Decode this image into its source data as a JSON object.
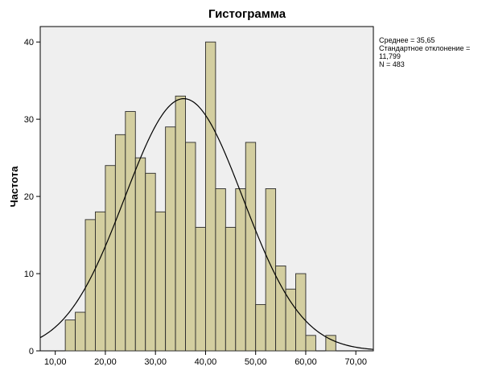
{
  "chart_data": {
    "type": "histogram",
    "title": "Гистограмма",
    "ylabel": "Частота",
    "xlabel": "",
    "xlim": [
      7,
      73.5
    ],
    "ylim": [
      0,
      42
    ],
    "grid": false,
    "x_ticks": [
      10,
      20,
      30,
      40,
      50,
      60,
      70
    ],
    "x_tick_labels": [
      "10,00",
      "20,00",
      "30,00",
      "40,00",
      "50,00",
      "60,00",
      "70,00"
    ],
    "y_ticks": [
      0,
      10,
      20,
      30,
      40
    ],
    "y_tick_labels": [
      "0",
      "10",
      "20",
      "30",
      "40"
    ],
    "bin_width": 2,
    "bins": [
      {
        "x0": 12,
        "x1": 14,
        "count": 4
      },
      {
        "x0": 14,
        "x1": 16,
        "count": 5
      },
      {
        "x0": 16,
        "x1": 18,
        "count": 17
      },
      {
        "x0": 18,
        "x1": 20,
        "count": 18
      },
      {
        "x0": 20,
        "x1": 22,
        "count": 24
      },
      {
        "x0": 22,
        "x1": 24,
        "count": 28
      },
      {
        "x0": 24,
        "x1": 26,
        "count": 31
      },
      {
        "x0": 26,
        "x1": 28,
        "count": 25
      },
      {
        "x0": 28,
        "x1": 30,
        "count": 23
      },
      {
        "x0": 30,
        "x1": 32,
        "count": 18
      },
      {
        "x0": 32,
        "x1": 34,
        "count": 29
      },
      {
        "x0": 34,
        "x1": 36,
        "count": 33
      },
      {
        "x0": 36,
        "x1": 38,
        "count": 27
      },
      {
        "x0": 38,
        "x1": 40,
        "count": 16
      },
      {
        "x0": 40,
        "x1": 42,
        "count": 40
      },
      {
        "x0": 42,
        "x1": 44,
        "count": 21
      },
      {
        "x0": 44,
        "x1": 46,
        "count": 16
      },
      {
        "x0": 46,
        "x1": 48,
        "count": 21
      },
      {
        "x0": 48,
        "x1": 50,
        "count": 27
      },
      {
        "x0": 50,
        "x1": 52,
        "count": 6
      },
      {
        "x0": 52,
        "x1": 54,
        "count": 21
      },
      {
        "x0": 54,
        "x1": 56,
        "count": 11
      },
      {
        "x0": 56,
        "x1": 58,
        "count": 8
      },
      {
        "x0": 58,
        "x1": 60,
        "count": 10
      },
      {
        "x0": 60,
        "x1": 62,
        "count": 2
      },
      {
        "x0": 62,
        "x1": 64,
        "count": 0
      },
      {
        "x0": 64,
        "x1": 66,
        "count": 2
      }
    ],
    "normal_curve": {
      "mean": 35.65,
      "sd": 11.799,
      "n": 483
    },
    "stats_lines": [
      "Среднее = 35,65",
      "Стандартное отклонение =",
      "11,799",
      "N = 483"
    ],
    "colors": {
      "bar_fill": "#d3cea0",
      "bar_stroke": "#2b2b2b",
      "plot_background": "#efefef",
      "curve": "#000000"
    }
  }
}
